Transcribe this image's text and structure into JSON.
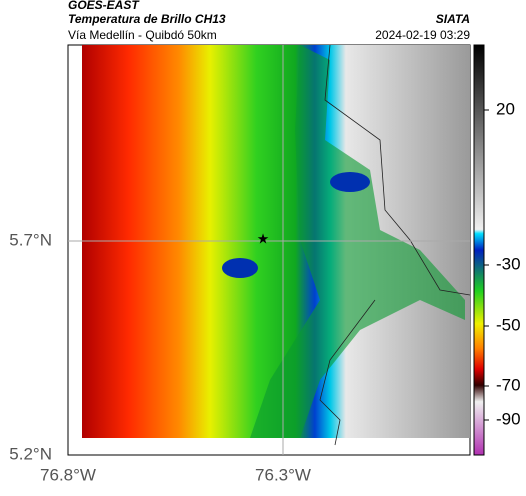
{
  "header": {
    "source": "GOES-EAST",
    "title": "Temperatura de Brillo CH13",
    "subtitle": "Vía Medellín - Quibdó 50km",
    "brand": "SIATA",
    "timestamp": "2024-02-19 03:29"
  },
  "map": {
    "lat_labels": [
      "5.7°N",
      "5.2°N"
    ],
    "lon_labels": [
      "76.8°W",
      "76.3°W"
    ]
  },
  "colorbar": {
    "ticks": [
      20,
      -30,
      -50,
      -70,
      -90
    ]
  }
}
